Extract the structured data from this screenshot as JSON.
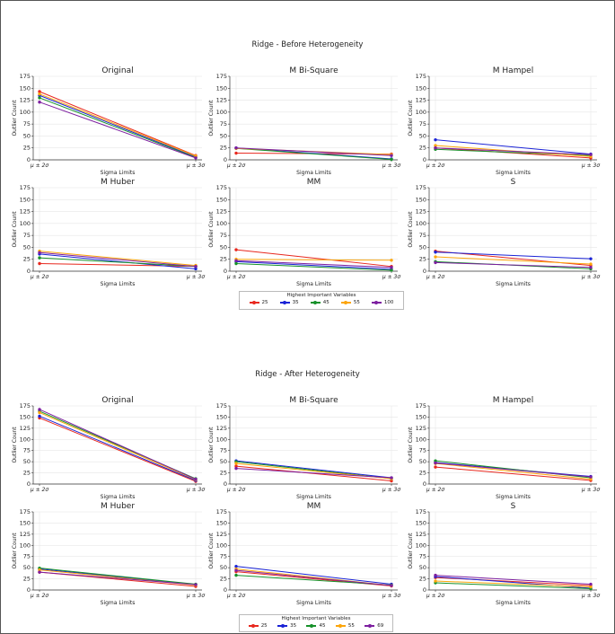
{
  "figure_titles": [
    "Ridge - Before Heterogeneity",
    "Ridge - After Heterogeneity"
  ],
  "legend_title": "Highest Important Variables",
  "series_colors": [
    "#e8281e",
    "#1a23d6",
    "#16912a",
    "#fca50a",
    "#7d1fa0"
  ],
  "chart_data": [
    {
      "figure": "Ridge - Before Heterogeneity",
      "type": "line",
      "categories": [
        "μ ± 2σ",
        "μ ± 3σ"
      ],
      "xlabel": "Sigma Limits",
      "ylabel": "Outlier Count",
      "ylim": [
        0,
        175
      ],
      "yticks": [
        "0",
        "25",
        "50",
        "75",
        "100",
        "125",
        "150",
        "175"
      ],
      "legend_labels": [
        "25",
        "35",
        "45",
        "55",
        "100"
      ],
      "panels": [
        {
          "title": "Original",
          "series": [
            {
              "name": "25",
              "values": [
                143,
                9
              ]
            },
            {
              "name": "35",
              "values": [
                135,
                6
              ]
            },
            {
              "name": "45",
              "values": [
                130,
                5
              ]
            },
            {
              "name": "55",
              "values": [
                138,
                8
              ]
            },
            {
              "name": "100",
              "values": [
                121,
                4
              ]
            }
          ]
        },
        {
          "title": "M Bi-Square",
          "series": [
            {
              "name": "25",
              "values": [
                14,
                12
              ]
            },
            {
              "name": "35",
              "values": [
                25,
                2
              ]
            },
            {
              "name": "45",
              "values": [
                24,
                1
              ]
            },
            {
              "name": "55",
              "values": [
                24,
                11
              ]
            },
            {
              "name": "100",
              "values": [
                25,
                9
              ]
            }
          ]
        },
        {
          "title": "M Hampel",
          "series": [
            {
              "name": "25",
              "values": [
                25,
                4
              ]
            },
            {
              "name": "35",
              "values": [
                42,
                12
              ]
            },
            {
              "name": "45",
              "values": [
                22,
                9
              ]
            },
            {
              "name": "55",
              "values": [
                30,
                7
              ]
            },
            {
              "name": "100",
              "values": [
                25,
                11
              ]
            }
          ]
        },
        {
          "title": "M Huber",
          "series": [
            {
              "name": "25",
              "values": [
                16,
                10
              ]
            },
            {
              "name": "35",
              "values": [
                36,
                5
              ]
            },
            {
              "name": "45",
              "values": [
                28,
                10
              ]
            },
            {
              "name": "55",
              "values": [
                42,
                12
              ]
            },
            {
              "name": "100",
              "values": [
                39,
                10
              ]
            }
          ]
        },
        {
          "title": "MM",
          "series": [
            {
              "name": "25",
              "values": [
                45,
                10
              ]
            },
            {
              "name": "35",
              "values": [
                20,
                4
              ]
            },
            {
              "name": "45",
              "values": [
                16,
                2
              ]
            },
            {
              "name": "55",
              "values": [
                25,
                23
              ]
            },
            {
              "name": "100",
              "values": [
                22,
                8
              ]
            }
          ]
        },
        {
          "title": "S",
          "series": [
            {
              "name": "25",
              "values": [
                42,
                12
              ]
            },
            {
              "name": "35",
              "values": [
                40,
                26
              ]
            },
            {
              "name": "45",
              "values": [
                20,
                5
              ]
            },
            {
              "name": "55",
              "values": [
                30,
                15
              ]
            },
            {
              "name": "100",
              "values": [
                18,
                8
              ]
            }
          ]
        }
      ]
    },
    {
      "figure": "Ridge - After Heterogeneity",
      "type": "line",
      "categories": [
        "μ ± 2σ",
        "μ ± 3σ"
      ],
      "xlabel": "Sigma Limits",
      "ylabel": "Outlier Count",
      "ylim": [
        0,
        175
      ],
      "yticks": [
        "0",
        "25",
        "50",
        "75",
        "100",
        "125",
        "150",
        "175"
      ],
      "legend_labels": [
        "25",
        "35",
        "45",
        "55",
        "69"
      ],
      "panels": [
        {
          "title": "Original",
          "series": [
            {
              "name": "25",
              "values": [
                148,
                6
              ]
            },
            {
              "name": "35",
              "values": [
                152,
                8
              ]
            },
            {
              "name": "45",
              "values": [
                163,
                12
              ]
            },
            {
              "name": "55",
              "values": [
                160,
                10
              ]
            },
            {
              "name": "69",
              "values": [
                167,
                11
              ]
            }
          ]
        },
        {
          "title": "M Bi-Square",
          "series": [
            {
              "name": "25",
              "values": [
                40,
                7
              ]
            },
            {
              "name": "35",
              "values": [
                52,
                14
              ]
            },
            {
              "name": "45",
              "values": [
                50,
                12
              ]
            },
            {
              "name": "55",
              "values": [
                46,
                12
              ]
            },
            {
              "name": "69",
              "values": [
                35,
                14
              ]
            }
          ]
        },
        {
          "title": "M Hampel",
          "series": [
            {
              "name": "25",
              "values": [
                38,
                8
              ]
            },
            {
              "name": "35",
              "values": [
                48,
                17
              ]
            },
            {
              "name": "45",
              "values": [
                52,
                14
              ]
            },
            {
              "name": "55",
              "values": [
                46,
                11
              ]
            },
            {
              "name": "69",
              "values": [
                47,
                16
              ]
            }
          ]
        },
        {
          "title": "M Huber",
          "series": [
            {
              "name": "25",
              "values": [
                40,
                8
              ]
            },
            {
              "name": "35",
              "values": [
                47,
                12
              ]
            },
            {
              "name": "45",
              "values": [
                49,
                13
              ]
            },
            {
              "name": "55",
              "values": [
                45,
                11
              ]
            },
            {
              "name": "69",
              "values": [
                40,
                12
              ]
            }
          ]
        },
        {
          "title": "MM",
          "series": [
            {
              "name": "25",
              "values": [
                41,
                9
              ]
            },
            {
              "name": "35",
              "values": [
                53,
                13
              ]
            },
            {
              "name": "45",
              "values": [
                33,
                11
              ]
            },
            {
              "name": "55",
              "values": [
                47,
                10
              ]
            },
            {
              "name": "69",
              "values": [
                44,
                10
              ]
            }
          ]
        },
        {
          "title": "S",
          "series": [
            {
              "name": "25",
              "values": [
                28,
                10
              ]
            },
            {
              "name": "35",
              "values": [
                30,
                4
              ]
            },
            {
              "name": "45",
              "values": [
                16,
                3
              ]
            },
            {
              "name": "55",
              "values": [
                20,
                7
              ]
            },
            {
              "name": "69",
              "values": [
                33,
                13
              ]
            }
          ]
        }
      ]
    }
  ]
}
